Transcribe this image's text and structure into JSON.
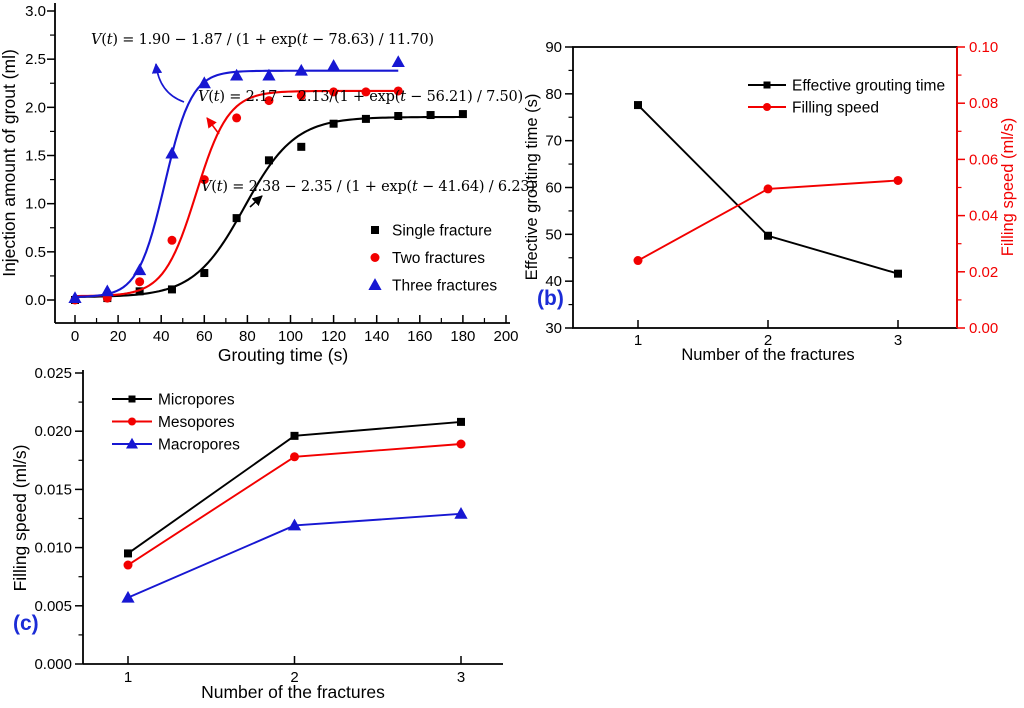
{
  "figure": {
    "background": "#ffffff",
    "colors": {
      "black": "#000000",
      "red": "#f20000",
      "blue": "#1717d2",
      "panel_label_blue": "#1b2cd6"
    }
  },
  "chart_data": [
    {
      "id": "a",
      "type": "scatter",
      "title": "",
      "xlabel": "Grouting time (s)",
      "ylabel": "Injection amount of grout (ml)",
      "xlim": [
        -10,
        205
      ],
      "ylim": [
        -0.25,
        3.05
      ],
      "xtick_values": [
        0,
        20,
        40,
        60,
        80,
        100,
        120,
        140,
        160,
        180,
        200
      ],
      "xtick_labels": [
        "0",
        "20",
        "40",
        "60",
        "80",
        "100",
        "120",
        "140",
        "160",
        "180",
        "200"
      ],
      "ytick_values": [
        0,
        0.5,
        1.0,
        1.5,
        2.0,
        2.5,
        3.0
      ],
      "ytick_labels": [
        "0.0",
        "0.5",
        "1.0",
        "1.5",
        "2.0",
        "2.5",
        "3.0"
      ],
      "legend_position": "lower-right-inside",
      "grid": false,
      "series": [
        {
          "name": "Single fracture",
          "color": "black",
          "marker": "square",
          "points": [
            [
              0,
              0.0
            ],
            [
              15,
              0.02
            ],
            [
              30,
              0.09
            ],
            [
              45,
              0.11
            ],
            [
              60,
              0.28
            ],
            [
              75,
              0.85
            ],
            [
              90,
              1.45
            ],
            [
              105,
              1.59
            ],
            [
              120,
              1.83
            ],
            [
              135,
              1.88
            ],
            [
              150,
              1.91
            ],
            [
              165,
              1.92
            ],
            [
              180,
              1.93
            ]
          ],
          "fit": {
            "A": 1.9,
            "B": 1.87,
            "t0": 78.63,
            "dt": 11.7,
            "tmax": 181
          }
        },
        {
          "name": "Two fractures",
          "color": "red",
          "marker": "circle",
          "points": [
            [
              0,
              0.0
            ],
            [
              15,
              0.02
            ],
            [
              30,
              0.19
            ],
            [
              45,
              0.62
            ],
            [
              60,
              1.25
            ],
            [
              75,
              1.89
            ],
            [
              90,
              2.07
            ],
            [
              105,
              2.12
            ],
            [
              120,
              2.16
            ],
            [
              135,
              2.16
            ],
            [
              150,
              2.17
            ]
          ],
          "fit": {
            "A": 2.17,
            "B": 2.13,
            "t0": 56.21,
            "dt": 7.5,
            "tmax": 152
          }
        },
        {
          "name": "Three fractures",
          "color": "blue",
          "marker": "triangle",
          "points": [
            [
              0,
              0.02
            ],
            [
              15,
              0.09
            ],
            [
              30,
              0.31
            ],
            [
              45,
              1.52
            ],
            [
              60,
              2.25
            ],
            [
              75,
              2.33
            ],
            [
              90,
              2.33
            ],
            [
              105,
              2.38
            ],
            [
              120,
              2.43
            ],
            [
              150,
              2.47
            ]
          ],
          "fit": {
            "A": 2.38,
            "B": 2.35,
            "t0": 41.64,
            "dt": 6.23,
            "tmax": 150
          }
        }
      ],
      "equations": [
        {
          "text": "V(t) = 1.90 − 1.87 / (1 + exp(t − 78.63) / 11.70)"
        },
        {
          "text": "V(t) = 2.17 − 2.13/(1 + exp(t − 56.21) / 7.50)"
        },
        {
          "text": "V(t) = 2.38 − 2.35 / (1 + exp(t − 41.64) / 6.23)"
        }
      ]
    },
    {
      "id": "b",
      "type": "line",
      "panel_label": "(b)",
      "xlabel": "Number of the fractures",
      "ylabel_left": "Effective grouting time (s)",
      "ylabel_right": "Filling speed (ml/s)",
      "xtick_values": [
        1,
        2,
        3
      ],
      "xtick_labels": [
        "1",
        "2",
        "3"
      ],
      "ylim_left": [
        30,
        90
      ],
      "ylim_right": [
        0,
        0.1
      ],
      "ytick_left_values": [
        30,
        40,
        50,
        60,
        70,
        80,
        90
      ],
      "ytick_left_labels": [
        "30",
        "40",
        "50",
        "60",
        "70",
        "80",
        "90"
      ],
      "ytick_right_values": [
        0,
        0.02,
        0.04,
        0.06,
        0.08,
        0.1
      ],
      "ytick_right_labels": [
        "0.00",
        "0.02",
        "0.04",
        "0.06",
        "0.08",
        "0.10"
      ],
      "legend_position": "upper-right-inside",
      "grid": false,
      "series": [
        {
          "name": "Effective grouting time",
          "axis": "left",
          "color": "black",
          "marker": "square",
          "x": [
            1,
            2,
            3
          ],
          "values": [
            77.6,
            49.7,
            41.6
          ]
        },
        {
          "name": "Filling speed",
          "axis": "right",
          "color": "red",
          "marker": "circle",
          "x": [
            1,
            2,
            3
          ],
          "values": [
            0.024,
            0.0495,
            0.0525
          ]
        }
      ]
    },
    {
      "id": "c",
      "type": "line",
      "panel_label": "(c)",
      "xlabel": "Number of the fractures",
      "ylabel": "Filling speed (ml/s)",
      "xtick_values": [
        1,
        2,
        3
      ],
      "xtick_labels": [
        "1",
        "2",
        "3"
      ],
      "ylim": [
        0,
        0.025
      ],
      "ytick_values": [
        0,
        0.005,
        0.01,
        0.015,
        0.02,
        0.025
      ],
      "ytick_labels": [
        "0.000",
        "0.005",
        "0.010",
        "0.015",
        "0.020",
        "0.025"
      ],
      "legend_position": "upper-left-inside",
      "grid": false,
      "series": [
        {
          "name": "Micropores",
          "color": "black",
          "marker": "square",
          "x": [
            1,
            2,
            3
          ],
          "values": [
            0.0095,
            0.0196,
            0.0208
          ]
        },
        {
          "name": "Mesopores",
          "color": "red",
          "marker": "circle",
          "x": [
            1,
            2,
            3
          ],
          "values": [
            0.0085,
            0.0178,
            0.0189
          ]
        },
        {
          "name": "Macropores",
          "color": "blue",
          "marker": "triangle",
          "x": [
            1,
            2,
            3
          ],
          "values": [
            0.0057,
            0.0119,
            0.0129
          ]
        }
      ]
    }
  ]
}
